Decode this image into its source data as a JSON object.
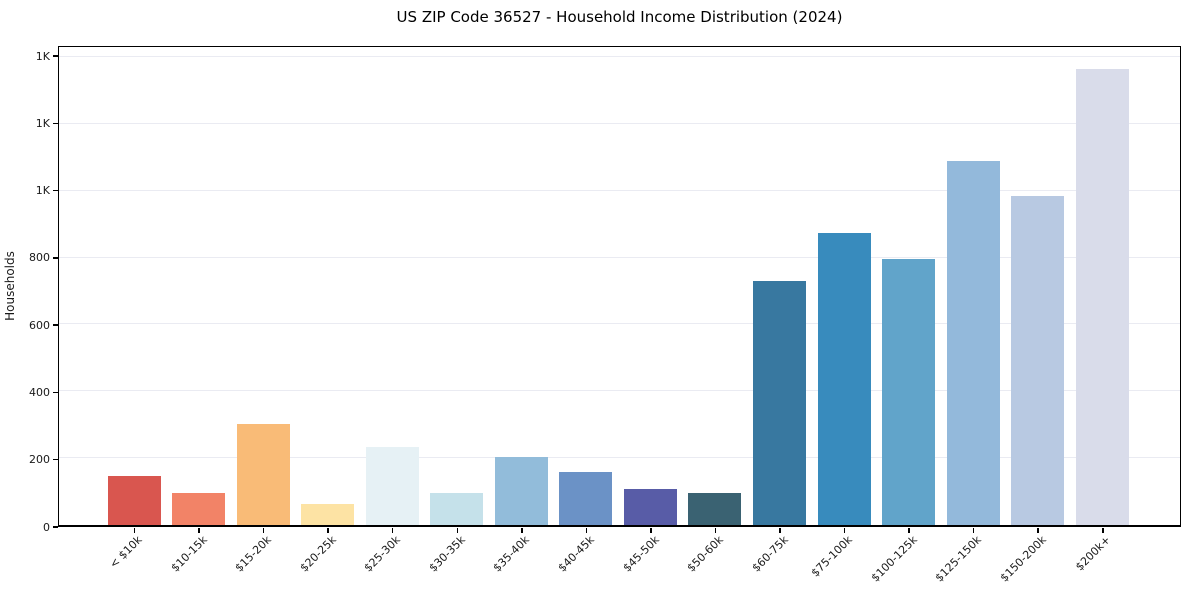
{
  "chart_data": {
    "type": "bar",
    "title": "US ZIP Code 36527 - Household Income Distribution (2024)",
    "xlabel": "",
    "ylabel": "Households",
    "categories": [
      "< $10k",
      "$10-15k",
      "$15-20k",
      "$20-25k",
      "$25-30k",
      "$30-35k",
      "$35-40k",
      "$40-45k",
      "$45-50k",
      "$50-60k",
      "$60-75k",
      "$75-100k",
      "$100-125k",
      "$125-150k",
      "$150-200k",
      "$200k+"
    ],
    "values": [
      146,
      95,
      303,
      62,
      232,
      95,
      203,
      159,
      107,
      95,
      731,
      874,
      796,
      1088,
      984,
      1364
    ],
    "bar_colors": [
      "#d9564f",
      "#f28367",
      "#f9bb77",
      "#fde3a4",
      "#e6f1f5",
      "#c5e1ea",
      "#92bcda",
      "#6b92c6",
      "#585ca7",
      "#3a6272",
      "#3878a0",
      "#388bbd",
      "#61a4ca",
      "#93b9db",
      "#b8c9e2",
      "#d9dcea"
    ],
    "ylim": [
      0,
      1430
    ],
    "yticks": [
      {
        "value": 0,
        "label": "0"
      },
      {
        "value": 200,
        "label": "200"
      },
      {
        "value": 400,
        "label": "400"
      },
      {
        "value": 600,
        "label": "600"
      },
      {
        "value": 800,
        "label": "800"
      },
      {
        "value": 1000,
        "label": "1K"
      },
      {
        "value": 1200,
        "label": "1K"
      },
      {
        "value": 1400,
        "label": "1K"
      }
    ],
    "grid": "horizontal",
    "legend": "none",
    "colors": {
      "background": "#ffffff",
      "gridline": "#eaebf2",
      "spine": "#000000",
      "text": "#1a1a1a"
    }
  }
}
